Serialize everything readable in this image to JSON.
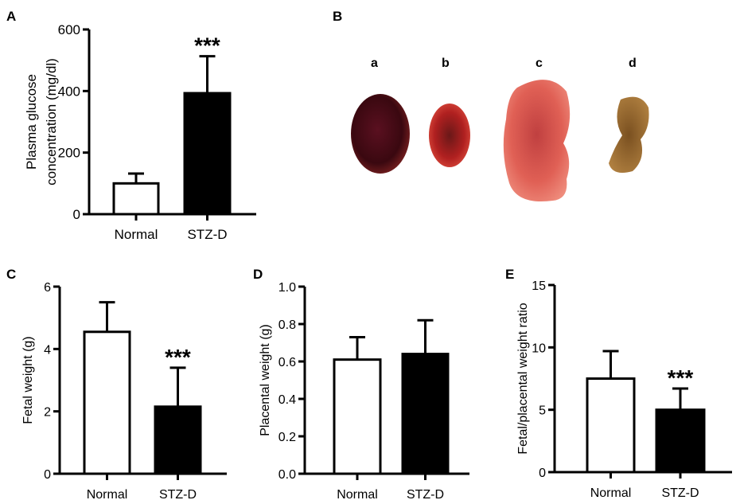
{
  "chart_data": [
    {
      "panel": "A",
      "type": "bar",
      "categories": [
        "Normal",
        "STZ-D"
      ],
      "values": [
        100,
        393
      ],
      "errors": [
        32,
        120
      ],
      "significance": [
        "",
        "***"
      ],
      "ylabel": [
        "Plasma glucose",
        "concentration (mg/dl)"
      ],
      "ylim": [
        0,
        600
      ],
      "yticks": [
        "0",
        "200",
        "400",
        "600"
      ],
      "fills": [
        "#ffffff",
        "#000000"
      ],
      "grid": false
    },
    {
      "panel": "C",
      "type": "bar",
      "categories": [
        "Normal",
        "STZ-D"
      ],
      "values": [
        4.55,
        2.15
      ],
      "errors": [
        0.95,
        1.25
      ],
      "significance": [
        "",
        "***"
      ],
      "ylabel": [
        "Fetal weight (g)"
      ],
      "ylim": [
        0,
        6
      ],
      "yticks": [
        "0",
        "2",
        "4",
        "6"
      ],
      "fills": [
        "#ffffff",
        "#000000"
      ],
      "grid": false
    },
    {
      "panel": "D",
      "type": "bar",
      "categories": [
        "Normal",
        "STZ-D"
      ],
      "values": [
        0.61,
        0.64
      ],
      "errors": [
        0.12,
        0.18
      ],
      "significance": [
        "",
        ""
      ],
      "ylabel": [
        "Placental weight (g)"
      ],
      "ylim": [
        0,
        1.0
      ],
      "yticks": [
        "0.0",
        "0.2",
        "0.4",
        "0.6",
        "0.8",
        "1.0"
      ],
      "fills": [
        "#ffffff",
        "#000000"
      ],
      "grid": false
    },
    {
      "panel": "E",
      "type": "bar",
      "categories": [
        "Normal",
        "STZ-D"
      ],
      "values": [
        7.5,
        5.0
      ],
      "errors": [
        2.2,
        1.7
      ],
      "significance": [
        "",
        "***"
      ],
      "ylabel": [
        "Fetal/placental weight ratio"
      ],
      "ylim": [
        0,
        15
      ],
      "yticks": [
        "0",
        "5",
        "10",
        "15"
      ],
      "fills": [
        "#ffffff",
        "#000000"
      ],
      "grid": false
    }
  ],
  "photo_panel": {
    "panel": "B",
    "labels": [
      "a",
      "b",
      "c",
      "d"
    ]
  }
}
